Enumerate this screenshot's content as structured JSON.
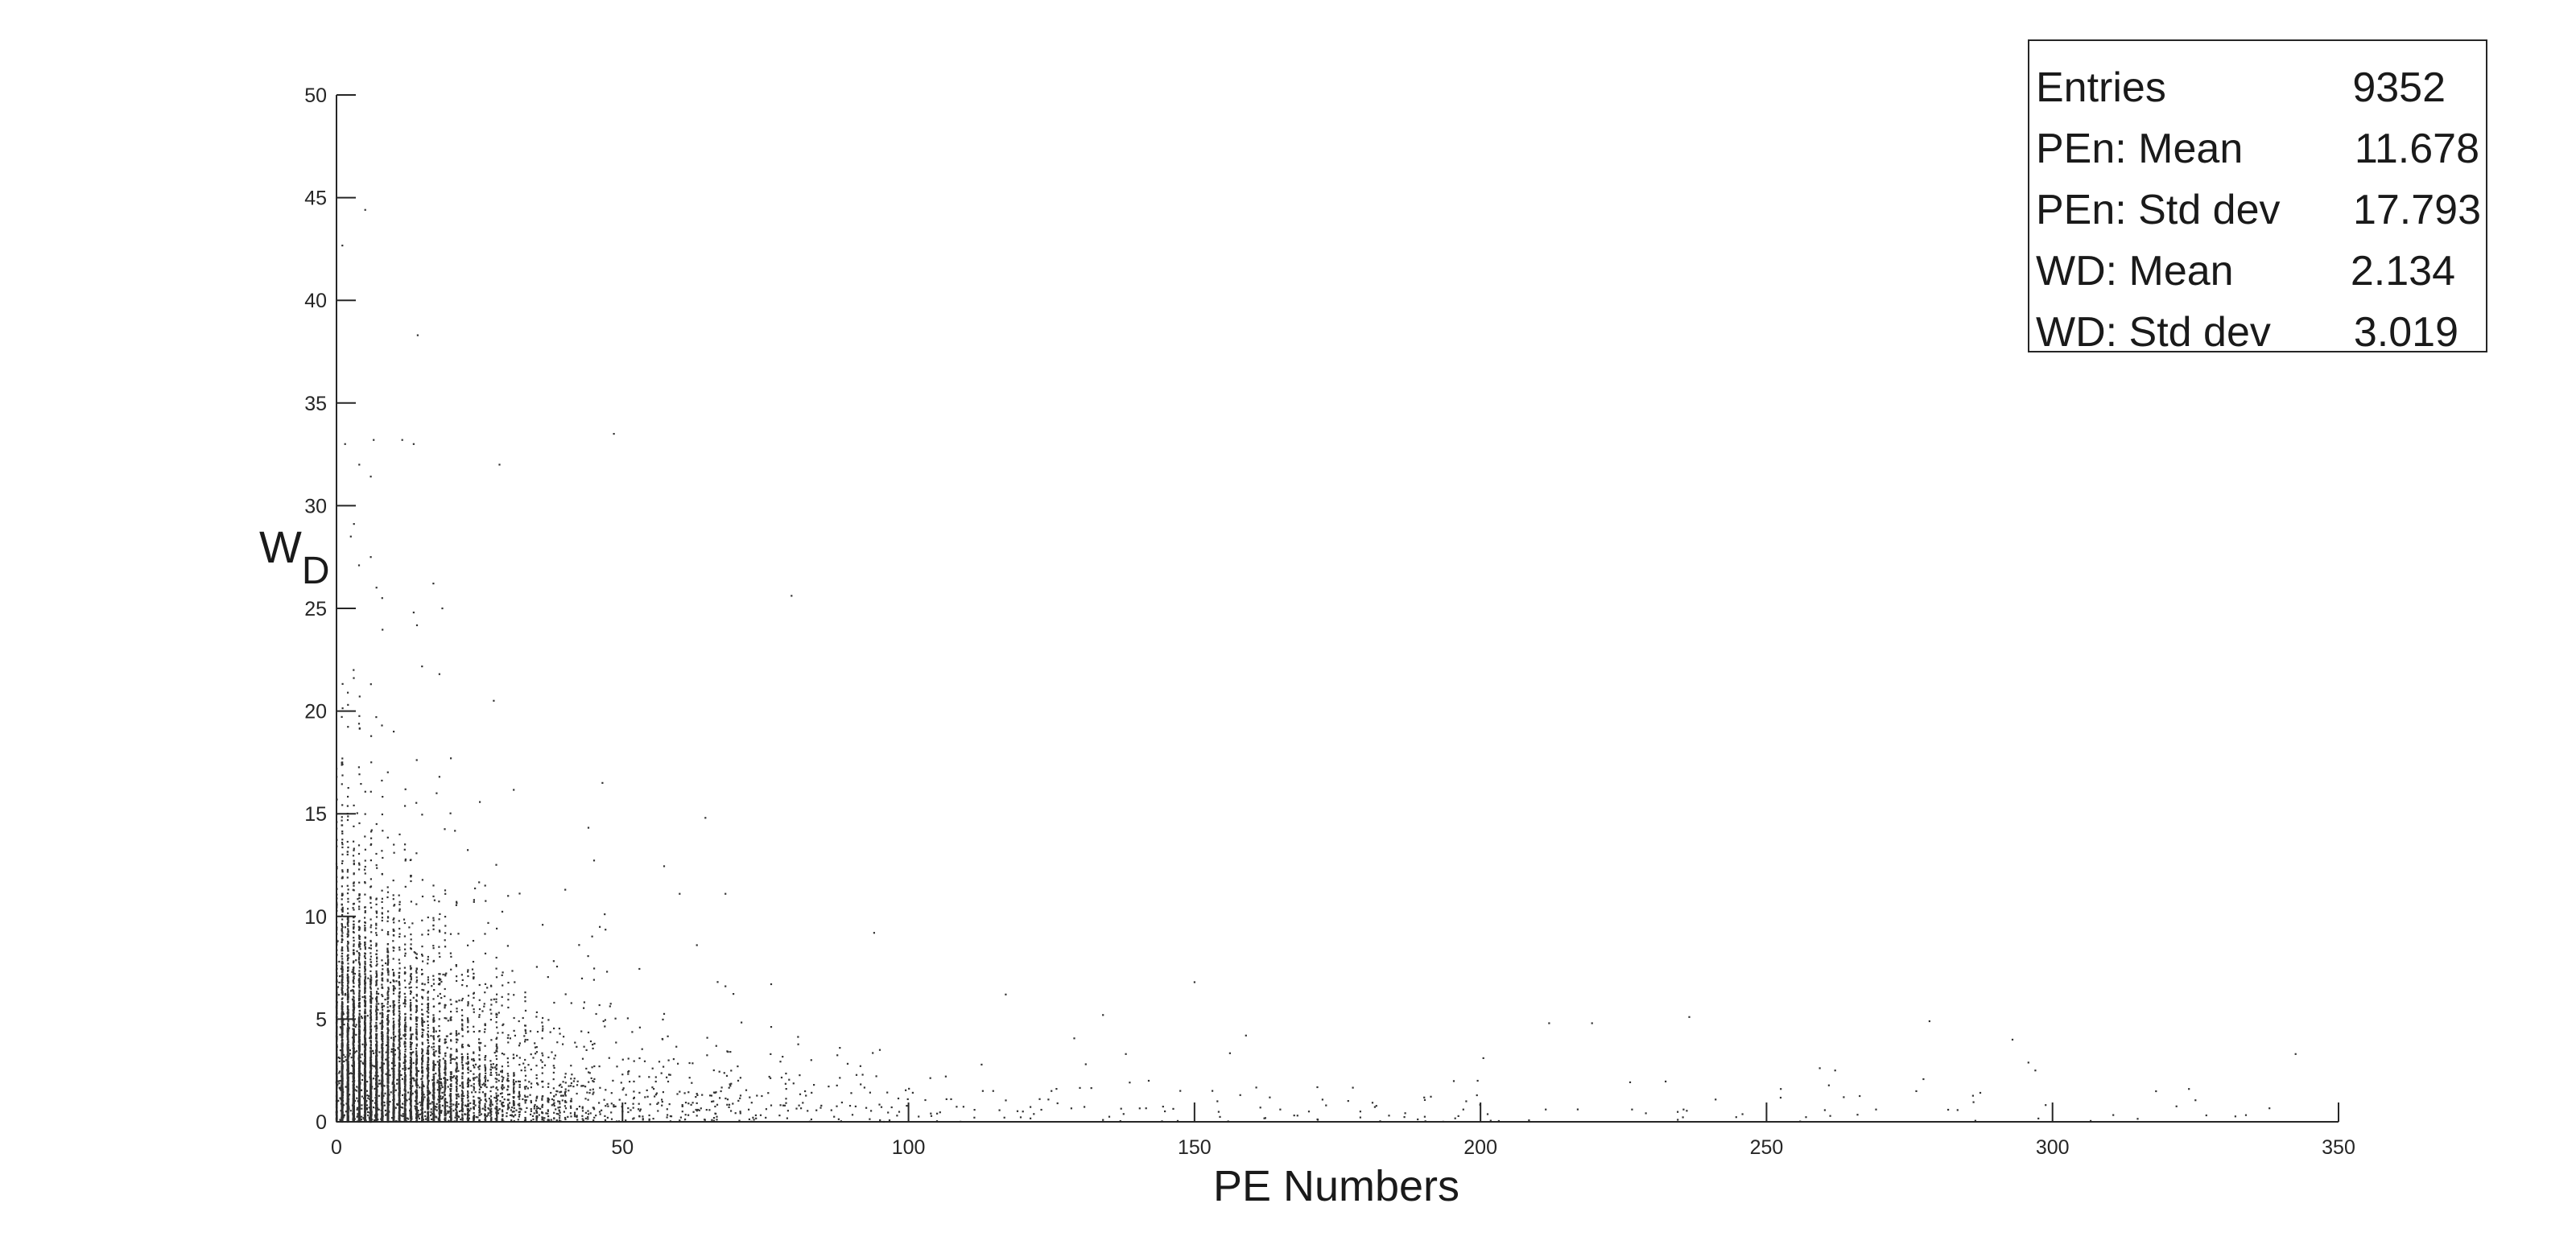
{
  "chart_data": {
    "type": "scatter",
    "title": "",
    "xlabel": "PE Numbers",
    "ylabel_main": "W",
    "ylabel_sub": "D",
    "xlim": [
      0,
      350
    ],
    "ylim": [
      0,
      50
    ],
    "xticks": [
      0,
      50,
      100,
      150,
      200,
      250,
      300,
      350
    ],
    "yticks": [
      0,
      5,
      10,
      15,
      20,
      25,
      30,
      35,
      40,
      45,
      50
    ],
    "grid": false,
    "marker_color": "#333333",
    "points_note_outliers": [
      [
        1.5,
        33.0
      ],
      [
        6.5,
        33.2
      ],
      [
        11.5,
        33.2
      ],
      [
        13.5,
        33.0
      ],
      [
        14.2,
        38.3
      ],
      [
        28.5,
        32.0
      ],
      [
        48.5,
        33.5
      ],
      [
        2.5,
        28.5
      ],
      [
        6.0,
        27.5
      ],
      [
        3.0,
        22.0
      ],
      [
        8.0,
        25.5
      ],
      [
        13.5,
        24.8
      ],
      [
        18.5,
        25.0
      ],
      [
        18.0,
        21.8
      ],
      [
        27.5,
        20.5
      ],
      [
        10.0,
        19.0
      ],
      [
        20.0,
        17.7
      ],
      [
        17.5,
        16.0
      ],
      [
        18.0,
        16.8
      ],
      [
        46.5,
        16.5
      ],
      [
        64.5,
        14.8
      ],
      [
        26.0,
        11.5
      ],
      [
        30.0,
        11.0
      ],
      [
        40.0,
        11.3
      ],
      [
        60.0,
        11.1
      ],
      [
        68.0,
        11.1
      ],
      [
        63.0,
        8.6
      ],
      [
        94.0,
        9.2
      ],
      [
        68.0,
        6.6
      ],
      [
        76.0,
        6.7
      ],
      [
        117.0,
        6.2
      ],
      [
        134.0,
        5.2
      ],
      [
        150.0,
        6.8
      ],
      [
        159.0,
        4.2
      ],
      [
        212.0,
        4.8
      ],
      [
        219.5,
        4.8
      ],
      [
        236.5,
        5.1
      ],
      [
        278.5,
        4.9
      ],
      [
        293.0,
        4.0
      ],
      [
        297.0,
        2.5
      ],
      [
        342.5,
        3.3
      ],
      [
        252.5,
        1.6
      ],
      [
        263.5,
        1.2
      ],
      [
        262.0,
        2.5
      ],
      [
        226.5,
        0.6
      ],
      [
        235.5,
        0.6
      ],
      [
        199.5,
        2.0
      ],
      [
        200.5,
        3.1
      ],
      [
        197.5,
        1.0
      ],
      [
        197.0,
        0.6
      ],
      [
        179.0,
        0.5
      ],
      [
        184.0,
        0.3
      ],
      [
        165.0,
        0.6
      ],
      [
        170.0,
        0.5
      ],
      [
        173.0,
        0.8
      ],
      [
        168.0,
        0.3
      ],
      [
        158.0,
        1.3
      ],
      [
        154.0,
        1.0
      ],
      [
        142.0,
        2.0
      ],
      [
        138.0,
        3.3
      ],
      [
        131.0,
        2.8
      ],
      [
        125.0,
        1.5
      ],
      [
        120.0,
        0.5
      ],
      [
        113.0,
        1.5
      ],
      [
        105.0,
        0.4
      ],
      [
        98.0,
        0.3
      ],
      [
        90.0,
        1.4
      ],
      [
        88.0,
        3.6
      ],
      [
        95.0,
        3.5
      ]
    ],
    "generated_density": {
      "seed": 9352,
      "total_points": 9352,
      "pe_mean": 11.678,
      "pe_std": 17.793,
      "wd_mean": 2.134,
      "wd_std": 3.019
    }
  },
  "stats": {
    "rows": [
      {
        "label": "Entries",
        "value": "9352"
      },
      {
        "label": "PEn: Mean",
        "value": "11.678"
      },
      {
        "label": "PEn: Std dev",
        "value": "17.793"
      },
      {
        "label": "WD: Mean",
        "value": "2.134"
      },
      {
        "label": "WD: Std dev",
        "value": "3.019"
      }
    ]
  }
}
